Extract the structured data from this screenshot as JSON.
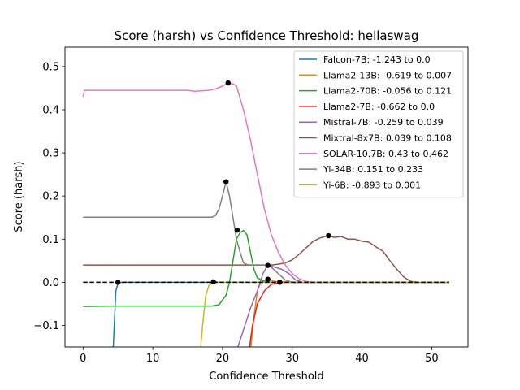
{
  "chart_data": {
    "type": "line",
    "title": "Score (harsh) vs Confidence Threshold: hellaswag",
    "xlabel": "Confidence Threshold",
    "ylabel": "Score (harsh)",
    "xlim": [
      -2.6,
      55.2
    ],
    "ylim": [
      -0.15,
      0.545
    ],
    "xticks": [
      0,
      10,
      20,
      30,
      40,
      50
    ],
    "yticks": [
      -0.1,
      0.0,
      0.1,
      0.2,
      0.3,
      0.4,
      0.5
    ],
    "xtick_labels": [
      "0",
      "10",
      "20",
      "30",
      "40",
      "50"
    ],
    "ytick_labels": [
      "−0.1",
      "0.0",
      "0.1",
      "0.2",
      "0.3",
      "0.4",
      "0.5"
    ],
    "grid": false,
    "legend_position": "top-right",
    "reference_line": {
      "y": 0.0,
      "style": "dashed",
      "color": "#000000"
    },
    "series": [
      {
        "name": "Falcon-7B",
        "legend": "Falcon-7B: -1.243 to 0.0",
        "color": "#1f77b4",
        "points": [
          [
            4.3,
            -0.16
          ],
          [
            4.5,
            -0.09
          ],
          [
            4.7,
            -0.02
          ],
          [
            5.0,
            -0.003
          ],
          [
            5.5,
            0.0
          ],
          [
            10,
            0.0
          ],
          [
            20,
            0.0
          ],
          [
            30,
            0.0
          ],
          [
            40,
            0.0
          ],
          [
            52.5,
            0.0
          ]
        ],
        "marker": [
          5.0,
          0.0
        ]
      },
      {
        "name": "Llama2-13B",
        "legend": "Llama2-13B: -0.619 to 0.007",
        "color": "#ff7f0e",
        "points": [
          [
            24.0,
            -0.16
          ],
          [
            24.5,
            -0.08
          ],
          [
            25.0,
            -0.02
          ],
          [
            25.5,
            0.0
          ],
          [
            26.5,
            0.006
          ],
          [
            27.5,
            0.002
          ],
          [
            30,
            0.0
          ],
          [
            40,
            0.0
          ],
          [
            52.5,
            0.0
          ]
        ],
        "marker": [
          26.5,
          0.007
        ]
      },
      {
        "name": "Llama2-70B",
        "legend": "Llama2-70B: -0.056 to 0.121",
        "color": "#2ca02c",
        "points": [
          [
            0,
            -0.056
          ],
          [
            5,
            -0.055
          ],
          [
            10,
            -0.055
          ],
          [
            15,
            -0.055
          ],
          [
            18.5,
            -0.055
          ],
          [
            19.5,
            -0.052
          ],
          [
            20.5,
            -0.03
          ],
          [
            21,
            0.0
          ],
          [
            21.5,
            0.05
          ],
          [
            22,
            0.1
          ],
          [
            22.5,
            0.115
          ],
          [
            23,
            0.12
          ],
          [
            23.5,
            0.11
          ],
          [
            24,
            0.07
          ],
          [
            24.5,
            0.03
          ],
          [
            25,
            0.01
          ],
          [
            26,
            0.002
          ],
          [
            27,
            0.0
          ],
          [
            30,
            0.0
          ],
          [
            52.5,
            0.0
          ]
        ],
        "marker": [
          22.1,
          0.121
        ]
      },
      {
        "name": "Llama2-7B",
        "legend": "Llama2-7B: -0.662 to 0.0",
        "color": "#d62728",
        "points": [
          [
            23.8,
            -0.16
          ],
          [
            24.3,
            -0.1
          ],
          [
            25,
            -0.05
          ],
          [
            26,
            -0.02
          ],
          [
            27,
            -0.005
          ],
          [
            28.2,
            0.0
          ],
          [
            35,
            0.0
          ],
          [
            52.5,
            0.0
          ]
        ],
        "marker": [
          28.2,
          0.0
        ]
      },
      {
        "name": "Mistral-7B",
        "legend": "Mistral-7B: -0.259 to 0.039",
        "color": "#9467bd",
        "points": [
          [
            22.0,
            -0.16
          ],
          [
            23,
            -0.11
          ],
          [
            24,
            -0.06
          ],
          [
            25,
            -0.02
          ],
          [
            25.8,
            0.02
          ],
          [
            26.3,
            0.035
          ],
          [
            26.8,
            0.039
          ],
          [
            27.5,
            0.035
          ],
          [
            28.5,
            0.03
          ],
          [
            29.5,
            0.02
          ],
          [
            30.5,
            0.005
          ],
          [
            31.5,
            0.0
          ],
          [
            40,
            0.0
          ],
          [
            52.5,
            0.0
          ]
        ],
        "marker": [
          26.5,
          0.039
        ]
      },
      {
        "name": "Mixtral-8x7B",
        "legend": "Mixtral-8x7B: 0.039 to 0.108",
        "color": "#8c564b",
        "points": [
          [
            0,
            0.04
          ],
          [
            10,
            0.04
          ],
          [
            20,
            0.04
          ],
          [
            25,
            0.04
          ],
          [
            27,
            0.04
          ],
          [
            28,
            0.042
          ],
          [
            29,
            0.045
          ],
          [
            30,
            0.052
          ],
          [
            31,
            0.065
          ],
          [
            32,
            0.08
          ],
          [
            33,
            0.095
          ],
          [
            34,
            0.103
          ],
          [
            35.2,
            0.108
          ],
          [
            36,
            0.104
          ],
          [
            37,
            0.106
          ],
          [
            38,
            0.1
          ],
          [
            39,
            0.1
          ],
          [
            40,
            0.095
          ],
          [
            41,
            0.093
          ],
          [
            42,
            0.082
          ],
          [
            43,
            0.072
          ],
          [
            44,
            0.05
          ],
          [
            45,
            0.03
          ],
          [
            46,
            0.012
          ],
          [
            47,
            0.002
          ],
          [
            48,
            0.0
          ],
          [
            52.5,
            0.0
          ]
        ],
        "marker": [
          35.2,
          0.108
        ]
      },
      {
        "name": "SOLAR-10.7B",
        "legend": "SOLAR-10.7B: 0.43 to 0.462",
        "color": "#e377c2",
        "points": [
          [
            0,
            0.43
          ],
          [
            0.2,
            0.445
          ],
          [
            5,
            0.445
          ],
          [
            10,
            0.445
          ],
          [
            15,
            0.445
          ],
          [
            16,
            0.443
          ],
          [
            18,
            0.445
          ],
          [
            19,
            0.448
          ],
          [
            20,
            0.455
          ],
          [
            20.8,
            0.462
          ],
          [
            21.5,
            0.46
          ],
          [
            22,
            0.455
          ],
          [
            23,
            0.4
          ],
          [
            24,
            0.33
          ],
          [
            25,
            0.25
          ],
          [
            26,
            0.17
          ],
          [
            27,
            0.11
          ],
          [
            28,
            0.07
          ],
          [
            29,
            0.04
          ],
          [
            30,
            0.02
          ],
          [
            31,
            0.008
          ],
          [
            32,
            0.002
          ],
          [
            33,
            0.0
          ],
          [
            40,
            0.0
          ],
          [
            52.5,
            0.0
          ]
        ],
        "marker": [
          20.8,
          0.462
        ]
      },
      {
        "name": "Yi-34B",
        "legend": "Yi-34B: 0.151 to 0.233",
        "color": "#7f7f7f",
        "points": [
          [
            0,
            0.151
          ],
          [
            5,
            0.151
          ],
          [
            10,
            0.151
          ],
          [
            15,
            0.151
          ],
          [
            18.5,
            0.151
          ],
          [
            19,
            0.155
          ],
          [
            19.5,
            0.17
          ],
          [
            20,
            0.2
          ],
          [
            20.5,
            0.233
          ],
          [
            21,
            0.2
          ],
          [
            21.5,
            0.15
          ],
          [
            22,
            0.1
          ],
          [
            22.5,
            0.07
          ],
          [
            23,
            0.045
          ],
          [
            23.5,
            0.041
          ],
          [
            24,
            0.04
          ],
          [
            26,
            0.04
          ],
          [
            27,
            0.035
          ],
          [
            28,
            0.02
          ],
          [
            29,
            0.005
          ],
          [
            30,
            0.0
          ],
          [
            52.5,
            0.0
          ]
        ],
        "marker": [
          20.5,
          0.233
        ]
      },
      {
        "name": "Yi-6B",
        "legend": "Yi-6B: -0.893 to 0.001",
        "color": "#bcbd22",
        "points": [
          [
            16.8,
            -0.16
          ],
          [
            17.2,
            -0.09
          ],
          [
            17.6,
            -0.03
          ],
          [
            18.1,
            -0.005
          ],
          [
            18.7,
            0.001
          ],
          [
            20,
            0.0
          ],
          [
            30,
            0.0
          ],
          [
            52.5,
            0.0
          ]
        ],
        "marker": [
          18.7,
          0.001
        ]
      }
    ]
  }
}
